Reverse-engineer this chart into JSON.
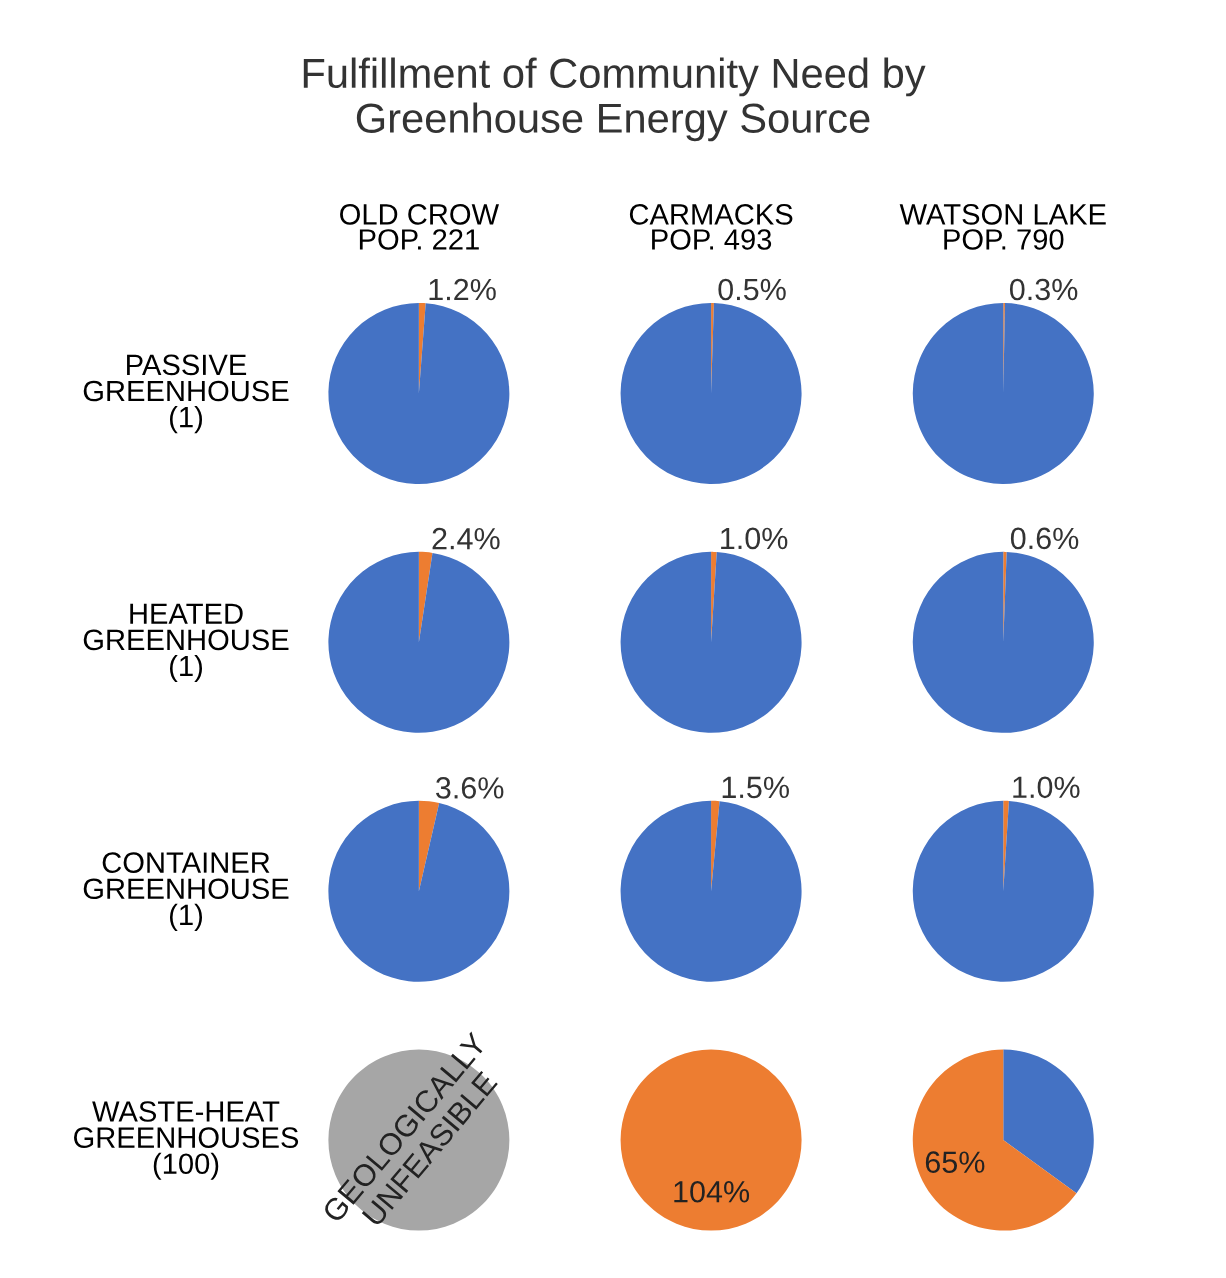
{
  "chart_data": [
    {
      "type": "pie",
      "title": "OLD CROW\nPOP. 221",
      "ylabel": "PASSIVE\nGREENHOUSE\n(1)",
      "annotations": [
        "Fulfillment of Community Need by\nGreenhouse Energy Source"
      ],
      "categories": [
        null,
        null
      ],
      "values": [
        1.2,
        98.8
      ],
      "colors": [
        "#ed7d31",
        "#4472c4"
      ],
      "value_labels": [
        "1.2%",
        null
      ]
    },
    {
      "type": "pie",
      "title": "CARMACKS\nPOP. 493",
      "categories": [
        null,
        null
      ],
      "values": [
        0.5,
        99.5
      ],
      "colors": [
        "#ed7d31",
        "#4472c4"
      ],
      "value_labels": [
        "0.5%",
        null
      ]
    },
    {
      "type": "pie",
      "title": "WATSON LAKE\nPOP. 790",
      "categories": [
        null,
        null
      ],
      "values": [
        0.3,
        99.7
      ],
      "colors": [
        "#ed7d31",
        "#4472c4"
      ],
      "value_labels": [
        "0.3%",
        null
      ]
    },
    {
      "type": "pie",
      "ylabel": "HEATED\nGREENHOUSE\n(1)",
      "categories": [
        null,
        null
      ],
      "values": [
        2.4,
        97.6
      ],
      "colors": [
        "#ed7d31",
        "#4472c4"
      ],
      "value_labels": [
        "2.4%",
        null
      ]
    },
    {
      "type": "pie",
      "categories": [
        null,
        null
      ],
      "values": [
        1.0,
        99.0
      ],
      "colors": [
        "#ed7d31",
        "#4472c4"
      ],
      "value_labels": [
        "1.0%",
        null
      ]
    },
    {
      "type": "pie",
      "categories": [
        null,
        null
      ],
      "values": [
        0.6,
        99.4
      ],
      "colors": [
        "#ed7d31",
        "#4472c4"
      ],
      "value_labels": [
        "0.6%",
        null
      ]
    },
    {
      "type": "pie",
      "ylabel": "CONTAINER\nGREENHOUSE\n(1)",
      "categories": [
        null,
        null
      ],
      "values": [
        3.6,
        96.4
      ],
      "colors": [
        "#ed7d31",
        "#4472c4"
      ],
      "value_labels": [
        "3.6%",
        null
      ]
    },
    {
      "type": "pie",
      "categories": [
        null,
        null
      ],
      "values": [
        1.5,
        98.5
      ],
      "colors": [
        "#ed7d31",
        "#4472c4"
      ],
      "value_labels": [
        "1.5%",
        null
      ]
    },
    {
      "type": "pie",
      "categories": [
        null,
        null
      ],
      "values": [
        1.0,
        99.0
      ],
      "colors": [
        "#ed7d31",
        "#4472c4"
      ],
      "value_labels": [
        "1.0%",
        null
      ]
    },
    {
      "type": "pie",
      "ylabel": "WASTE-HEAT\nGREENHOUSES\n(100)",
      "categories": [
        null
      ],
      "values": [
        100
      ],
      "colors": [
        "#a6a6a6"
      ],
      "annotations": [
        "GEOLOGICALLY\nUNFEASIBLE"
      ]
    },
    {
      "type": "pie",
      "categories": [
        null
      ],
      "values": [
        104
      ],
      "colors": [
        "#ed7d31"
      ],
      "value_labels": [
        "104%"
      ]
    },
    {
      "type": "pie",
      "categories": [
        null,
        null
      ],
      "values": [
        35,
        65
      ],
      "colors": [
        "#4472c4",
        "#ed7d31"
      ],
      "value_labels": [
        null,
        "65%"
      ]
    }
  ]
}
